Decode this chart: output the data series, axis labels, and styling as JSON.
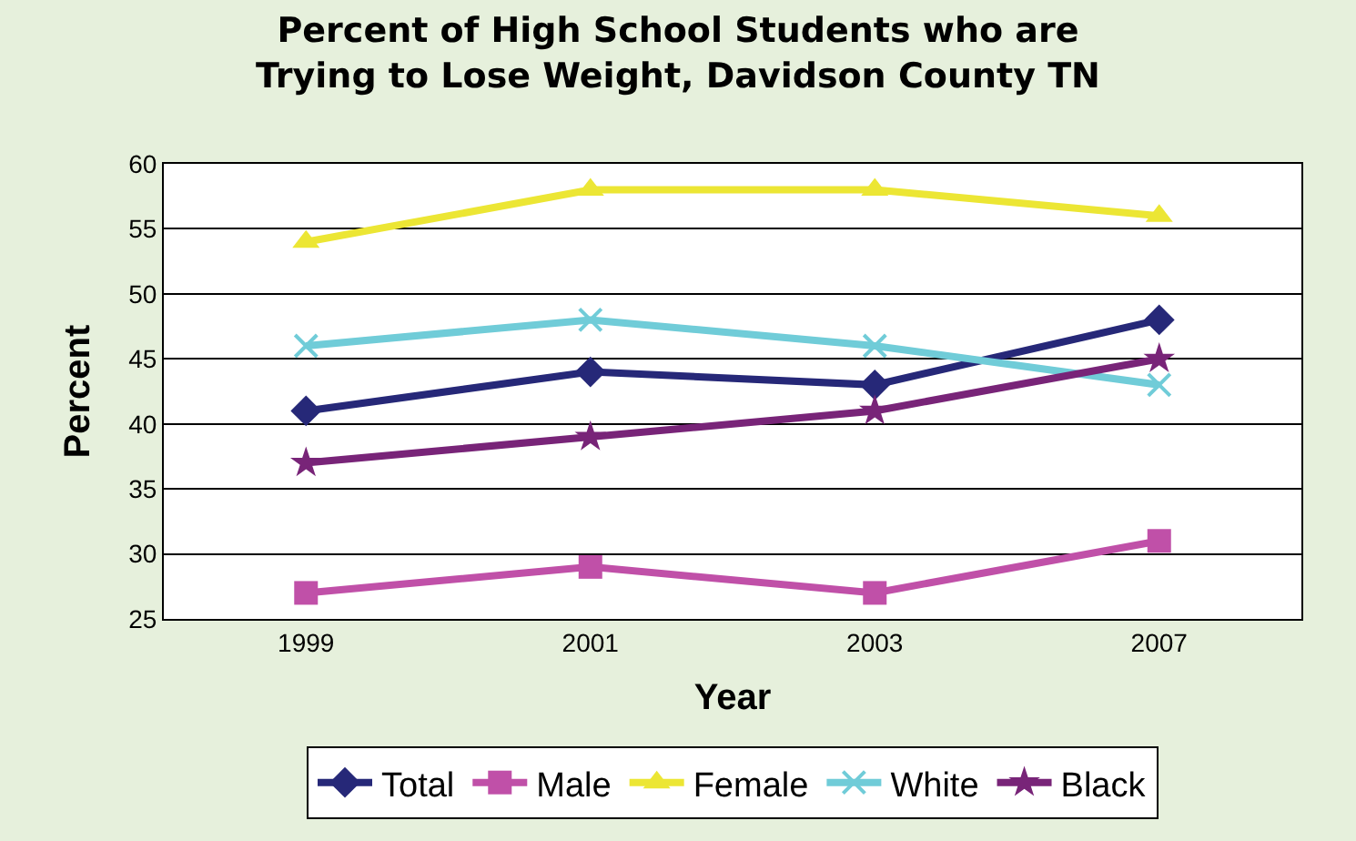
{
  "chart_data": {
    "type": "line",
    "title": "Percent of High School Students who are\nTrying to Lose Weight, Davidson County TN",
    "xlabel": "Year",
    "ylabel": "Percent",
    "categories": [
      "1999",
      "2001",
      "2003",
      "2007"
    ],
    "series": [
      {
        "name": "Total",
        "color": "#262878",
        "marker": "diamond",
        "values": [
          41,
          44,
          43,
          48
        ]
      },
      {
        "name": "Male",
        "color": "#c050a8",
        "marker": "square",
        "values": [
          27,
          29,
          27,
          31
        ]
      },
      {
        "name": "Female",
        "color": "#ece634",
        "marker": "triangle",
        "values": [
          54,
          58,
          58,
          56
        ]
      },
      {
        "name": "White",
        "color": "#70ccd8",
        "marker": "cross",
        "values": [
          46,
          48,
          46,
          43
        ]
      },
      {
        "name": "Black",
        "color": "#782478",
        "marker": "star",
        "values": [
          37,
          39,
          41,
          45
        ]
      }
    ],
    "ylim": [
      25,
      60
    ],
    "yticks": [
      25,
      30,
      35,
      40,
      45,
      50,
      55,
      60
    ],
    "grid": "y",
    "legend": "bottom",
    "line_style": "solid"
  }
}
